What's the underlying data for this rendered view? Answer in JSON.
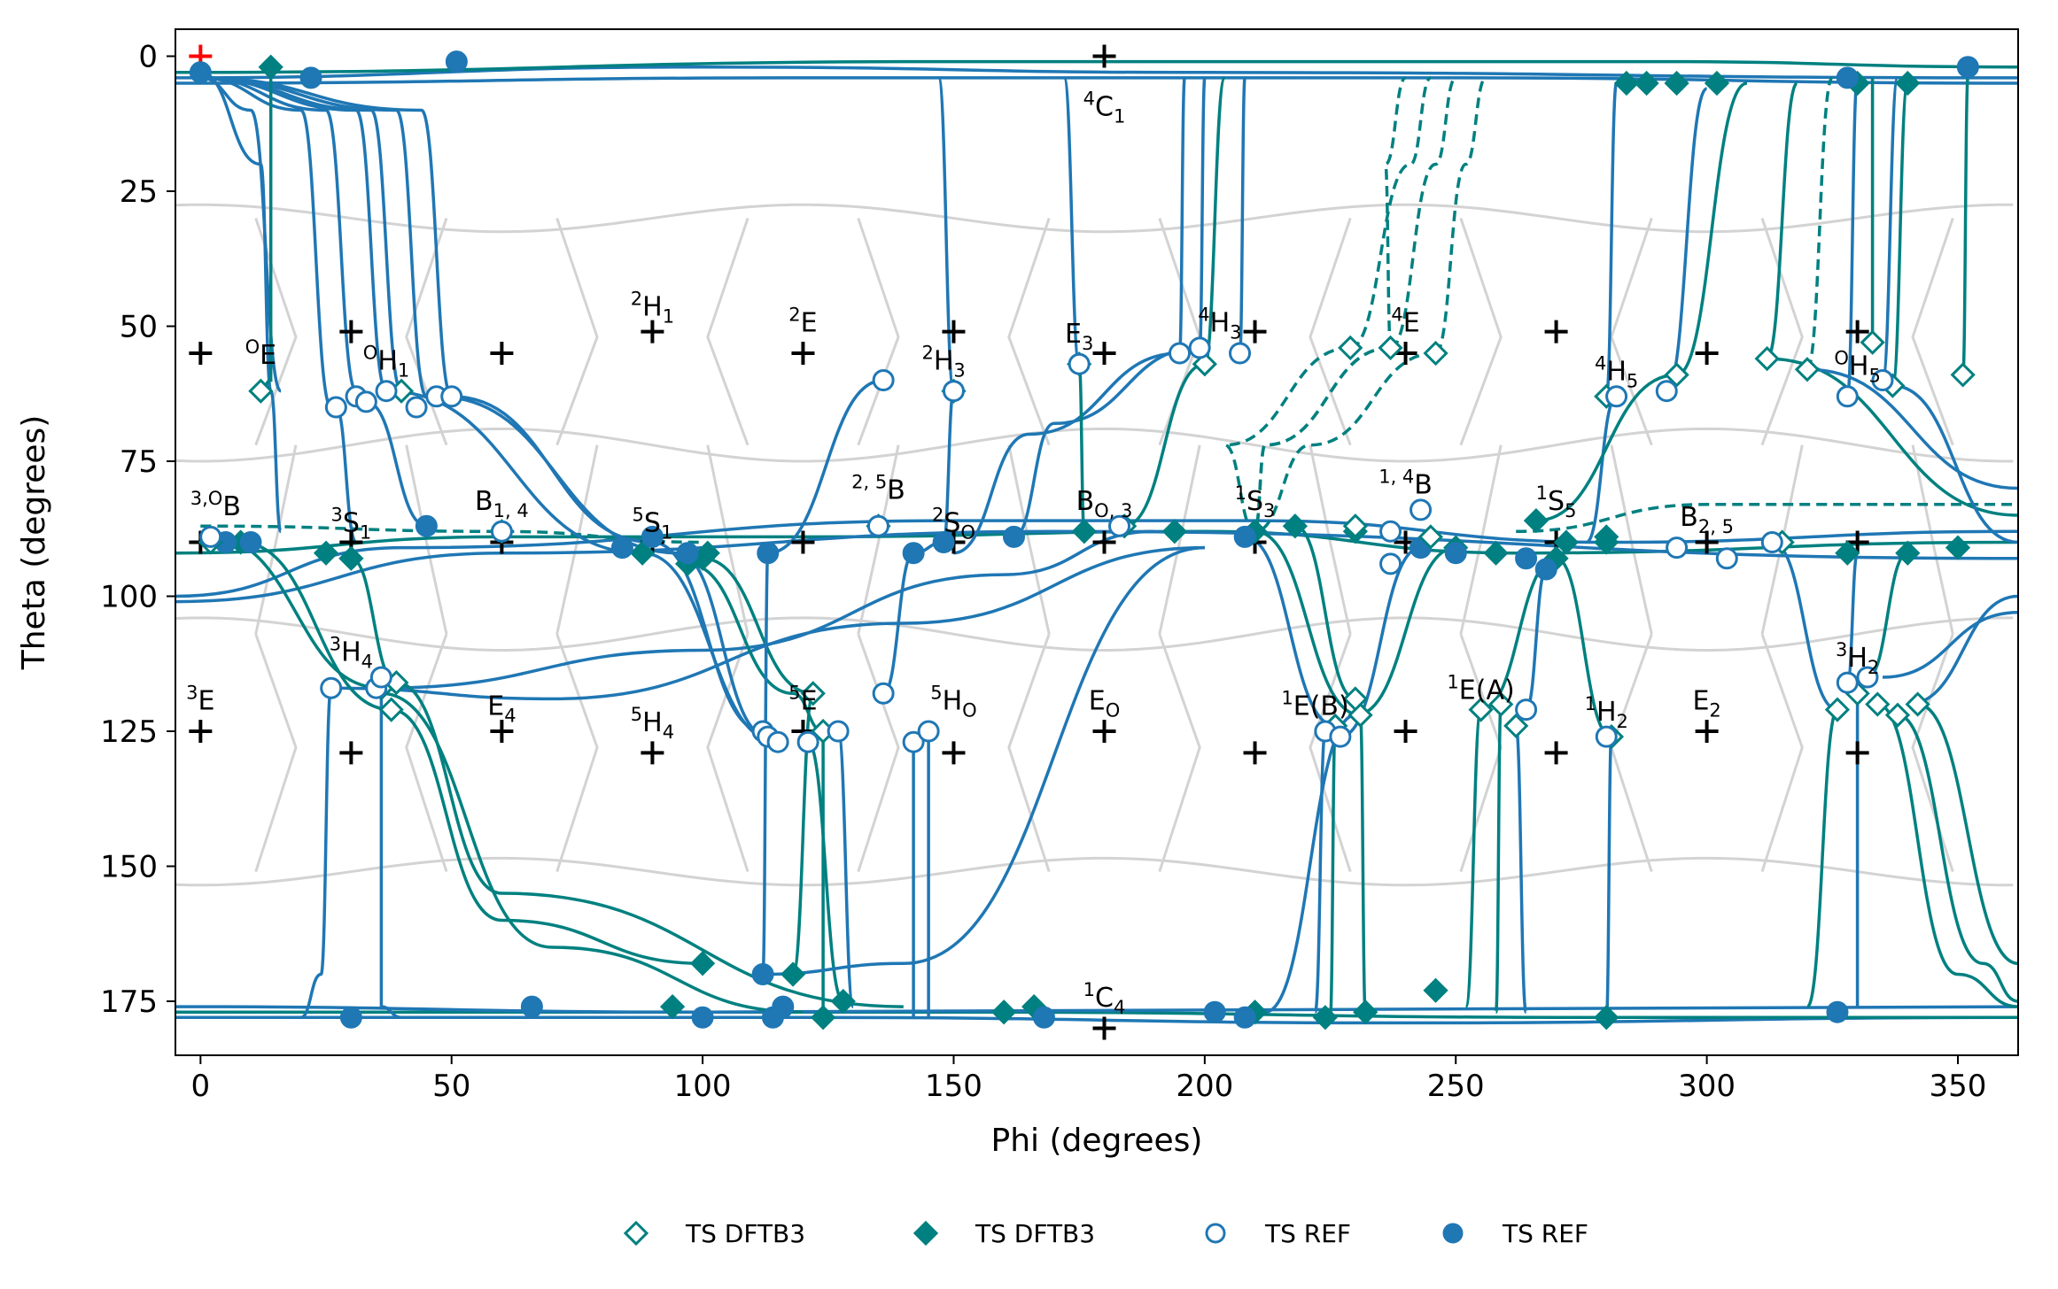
{
  "chart_data": {
    "type": "scatter",
    "xlabel": "Phi (degrees)",
    "ylabel": "Theta (degrees)",
    "xlim": [
      -5,
      362
    ],
    "ylim": [
      185,
      -5
    ],
    "y_inverted": true,
    "xticks": [
      0,
      50,
      100,
      150,
      200,
      250,
      300,
      350
    ],
    "yticks": [
      0,
      25,
      50,
      75,
      100,
      125,
      150,
      175
    ],
    "grid": false,
    "legend_placement": "bottom-center",
    "colors": {
      "dftb3": "#008080",
      "ref": "#1f77b4",
      "voronoi": "#d3d3d3",
      "plus": "#000000",
      "origin_plus": "#ff0000",
      "ts_cross": "#008000"
    },
    "legend": [
      {
        "label": "TS DFTB3",
        "marker": "diamond-open",
        "color": "#008080"
      },
      {
        "label": "TS DFTB3",
        "marker": "diamond-filled",
        "color": "#008080"
      },
      {
        "label": "TS REF",
        "marker": "circle-open",
        "color": "#1f77b4"
      },
      {
        "label": "TS REF",
        "marker": "circle-filled",
        "color": "#1f77b4"
      }
    ],
    "region_labels": [
      {
        "text": "4C1",
        "pre": "4",
        "main": "C",
        "sub": "1",
        "x": 180,
        "y": 11
      },
      {
        "text": "1C4",
        "pre": "1",
        "main": "C",
        "sub": "4",
        "x": 180,
        "y": 176
      },
      {
        "text": "OE",
        "pre": "O",
        "main": "E",
        "sub": "",
        "x": 12,
        "y": 57
      },
      {
        "text": "OH1",
        "pre": "O",
        "main": "H",
        "sub": "1",
        "x": 37,
        "y": 58
      },
      {
        "text": "2H1",
        "pre": "2",
        "main": "H",
        "sub": "1",
        "x": 90,
        "y": 48
      },
      {
        "text": "2E",
        "pre": "2",
        "main": "E",
        "sub": "",
        "x": 120,
        "y": 51
      },
      {
        "text": "2H3",
        "pre": "2",
        "main": "H",
        "sub": "3",
        "x": 148,
        "y": 58
      },
      {
        "text": "E3",
        "pre": "",
        "main": "E",
        "sub": "3",
        "x": 175,
        "y": 53
      },
      {
        "text": "4H3",
        "pre": "4",
        "main": "H",
        "sub": "3",
        "x": 203,
        "y": 51
      },
      {
        "text": "4E",
        "pre": "4",
        "main": "E",
        "sub": "",
        "x": 240,
        "y": 51
      },
      {
        "text": "4H5",
        "pre": "4",
        "main": "H",
        "sub": "5",
        "x": 282,
        "y": 60
      },
      {
        "text": "OH5",
        "pre": "O",
        "main": "H",
        "sub": "5",
        "x": 330,
        "y": 59
      },
      {
        "text": "3,OB",
        "pre": "3,O",
        "main": "B",
        "sub": "",
        "x": 3,
        "y": 85
      },
      {
        "text": "3S1",
        "pre": "3",
        "main": "S",
        "sub": "1",
        "x": 30,
        "y": 88
      },
      {
        "text": "B1,4",
        "pre": "",
        "main": "B",
        "sub": "1, 4",
        "x": 60,
        "y": 84
      },
      {
        "text": "5S1",
        "pre": "5",
        "main": "S",
        "sub": "1",
        "x": 90,
        "y": 88
      },
      {
        "text": "2,5B",
        "pre": "2, 5",
        "main": "B",
        "sub": "",
        "x": 135,
        "y": 82
      },
      {
        "text": "2SO",
        "pre": "2",
        "main": "S",
        "sub": "O",
        "x": 150,
        "y": 88
      },
      {
        "text": "BO,3",
        "pre": "",
        "main": "B",
        "sub": "O, 3",
        "x": 180,
        "y": 84
      },
      {
        "text": "1S3",
        "pre": "1",
        "main": "S",
        "sub": "3",
        "x": 210,
        "y": 84
      },
      {
        "text": "1,4B",
        "pre": "1, 4",
        "main": "B",
        "sub": "",
        "x": 240,
        "y": 81
      },
      {
        "text": "1S5",
        "pre": "1",
        "main": "S",
        "sub": "5",
        "x": 270,
        "y": 84
      },
      {
        "text": "B2,5",
        "pre": "",
        "main": "B",
        "sub": "2, 5",
        "x": 300,
        "y": 87
      },
      {
        "text": "3H4",
        "pre": "3",
        "main": "H",
        "sub": "4",
        "x": 30,
        "y": 112
      },
      {
        "text": "3E",
        "pre": "3",
        "main": "E",
        "sub": "",
        "x": 0,
        "y": 121
      },
      {
        "text": "E4",
        "pre": "",
        "main": "E",
        "sub": "4",
        "x": 60,
        "y": 122
      },
      {
        "text": "5H4",
        "pre": "5",
        "main": "H",
        "sub": "4",
        "x": 90,
        "y": 125
      },
      {
        "text": "5E",
        "pre": "5",
        "main": "E",
        "sub": "",
        "x": 120,
        "y": 121
      },
      {
        "text": "5HO",
        "pre": "5",
        "main": "H",
        "sub": "O",
        "x": 150,
        "y": 121
      },
      {
        "text": "EO",
        "pre": "",
        "main": "E",
        "sub": "O",
        "x": 180,
        "y": 121
      },
      {
        "text": "1E(B)",
        "pre": "1",
        "main": "E(B)",
        "sub": "",
        "x": 222,
        "y": 122
      },
      {
        "text": "1E(A)",
        "pre": "1",
        "main": "E(A)",
        "sub": "",
        "x": 255,
        "y": 119
      },
      {
        "text": "1H2",
        "pre": "1",
        "main": "H",
        "sub": "2",
        "x": 280,
        "y": 123
      },
      {
        "text": "E2",
        "pre": "",
        "main": "E",
        "sub": "2",
        "x": 300,
        "y": 121
      },
      {
        "text": "3H2",
        "pre": "3",
        "main": "H",
        "sub": "2",
        "x": 330,
        "y": 113
      }
    ],
    "reference_points": [
      {
        "x": 0,
        "y": 0,
        "origin": true
      },
      {
        "x": 180,
        "y": 0
      },
      {
        "x": 180,
        "y": 180
      },
      {
        "x": 0,
        "y": 55
      },
      {
        "x": 30,
        "y": 51
      },
      {
        "x": 60,
        "y": 55
      },
      {
        "x": 90,
        "y": 51
      },
      {
        "x": 120,
        "y": 55
      },
      {
        "x": 150,
        "y": 51
      },
      {
        "x": 180,
        "y": 55
      },
      {
        "x": 210,
        "y": 51
      },
      {
        "x": 240,
        "y": 55
      },
      {
        "x": 270,
        "y": 51
      },
      {
        "x": 300,
        "y": 55
      },
      {
        "x": 330,
        "y": 51
      },
      {
        "x": 0,
        "y": 90
      },
      {
        "x": 30,
        "y": 90
      },
      {
        "x": 60,
        "y": 90
      },
      {
        "x": 90,
        "y": 90
      },
      {
        "x": 120,
        "y": 90
      },
      {
        "x": 150,
        "y": 90
      },
      {
        "x": 180,
        "y": 90
      },
      {
        "x": 210,
        "y": 90
      },
      {
        "x": 240,
        "y": 90
      },
      {
        "x": 270,
        "y": 90
      },
      {
        "x": 300,
        "y": 90
      },
      {
        "x": 330,
        "y": 90
      },
      {
        "x": 0,
        "y": 125
      },
      {
        "x": 30,
        "y": 129
      },
      {
        "x": 60,
        "y": 125
      },
      {
        "x": 90,
        "y": 129
      },
      {
        "x": 120,
        "y": 125
      },
      {
        "x": 150,
        "y": 129
      },
      {
        "x": 180,
        "y": 125
      },
      {
        "x": 210,
        "y": 129
      },
      {
        "x": 240,
        "y": 125
      },
      {
        "x": 270,
        "y": 129
      },
      {
        "x": 300,
        "y": 125
      },
      {
        "x": 330,
        "y": 129
      }
    ],
    "ts_dftb3_open": [
      [
        12,
        62
      ],
      [
        40,
        62
      ],
      [
        150,
        62
      ],
      [
        175,
        57
      ],
      [
        200,
        57
      ],
      [
        229,
        54
      ],
      [
        237,
        54
      ],
      [
        246,
        55
      ],
      [
        280,
        63
      ],
      [
        294,
        59
      ],
      [
        312,
        56
      ],
      [
        320,
        58
      ],
      [
        333,
        53
      ],
      [
        337,
        61
      ],
      [
        351,
        59
      ],
      [
        2,
        90
      ],
      [
        60,
        88
      ],
      [
        135,
        87
      ],
      [
        184,
        87
      ],
      [
        230,
        87
      ],
      [
        245,
        89
      ],
      [
        315,
        90
      ],
      [
        36,
        117
      ],
      [
        39,
        116
      ],
      [
        38,
        121
      ],
      [
        122,
        118
      ],
      [
        124,
        125
      ],
      [
        226,
        124
      ],
      [
        231,
        122
      ],
      [
        230,
        119
      ],
      [
        255,
        121
      ],
      [
        259,
        120
      ],
      [
        262,
        124
      ],
      [
        326,
        121
      ],
      [
        330,
        118
      ],
      [
        334,
        120
      ],
      [
        338,
        122
      ],
      [
        342,
        120
      ],
      [
        281,
        126
      ]
    ],
    "ts_dftb3_filled": [
      [
        14,
        2
      ],
      [
        284,
        5
      ],
      [
        288,
        5
      ],
      [
        294,
        5
      ],
      [
        302,
        5
      ],
      [
        330,
        5
      ],
      [
        340,
        5
      ],
      [
        8,
        90
      ],
      [
        25,
        92
      ],
      [
        30,
        93
      ],
      [
        88,
        92
      ],
      [
        97,
        94
      ],
      [
        100,
        93
      ],
      [
        101,
        92
      ],
      [
        176,
        88
      ],
      [
        194,
        88
      ],
      [
        210,
        88
      ],
      [
        218,
        87
      ],
      [
        230,
        88
      ],
      [
        250,
        91
      ],
      [
        258,
        92
      ],
      [
        266,
        86
      ],
      [
        270,
        93
      ],
      [
        272,
        90
      ],
      [
        280,
        90
      ],
      [
        280,
        89
      ],
      [
        328,
        92
      ],
      [
        340,
        92
      ],
      [
        350,
        91
      ],
      [
        100,
        168
      ],
      [
        118,
        170
      ],
      [
        128,
        175
      ],
      [
        124,
        178
      ],
      [
        94,
        176
      ],
      [
        160,
        177
      ],
      [
        166,
        176
      ],
      [
        210,
        177
      ],
      [
        224,
        178
      ],
      [
        232,
        177
      ],
      [
        246,
        173
      ],
      [
        280,
        178
      ]
    ],
    "ts_ref_open": [
      [
        2,
        89
      ],
      [
        27,
        65
      ],
      [
        31,
        63
      ],
      [
        33,
        64
      ],
      [
        37,
        62
      ],
      [
        43,
        65
      ],
      [
        47,
        63
      ],
      [
        50,
        63
      ],
      [
        136,
        60
      ],
      [
        150,
        62
      ],
      [
        175,
        57
      ],
      [
        195,
        55
      ],
      [
        199,
        54
      ],
      [
        207,
        55
      ],
      [
        282,
        63
      ],
      [
        292,
        62
      ],
      [
        313,
        90
      ],
      [
        328,
        63
      ],
      [
        335,
        60
      ],
      [
        60,
        88
      ],
      [
        135,
        87
      ],
      [
        183,
        87
      ],
      [
        237,
        88
      ],
      [
        243,
        84
      ],
      [
        294,
        91
      ],
      [
        304,
        93
      ],
      [
        237,
        94
      ],
      [
        26,
        117
      ],
      [
        35,
        117
      ],
      [
        36,
        115
      ],
      [
        112,
        125
      ],
      [
        113,
        126
      ],
      [
        115,
        127
      ],
      [
        121,
        127
      ],
      [
        127,
        125
      ],
      [
        136,
        118
      ],
      [
        142,
        127
      ],
      [
        145,
        125
      ],
      [
        224,
        125
      ],
      [
        227,
        126
      ],
      [
        264,
        121
      ],
      [
        328,
        116
      ],
      [
        332,
        115
      ],
      [
        280,
        126
      ]
    ],
    "ts_ref_filled": [
      [
        0,
        3
      ],
      [
        22,
        4
      ],
      [
        51,
        1
      ],
      [
        352,
        2
      ],
      [
        328,
        4
      ],
      [
        5,
        90
      ],
      [
        10,
        90
      ],
      [
        45,
        87
      ],
      [
        84,
        91
      ],
      [
        90,
        89
      ],
      [
        97,
        92
      ],
      [
        113,
        92
      ],
      [
        142,
        92
      ],
      [
        148,
        90
      ],
      [
        162,
        89
      ],
      [
        208,
        89
      ],
      [
        243,
        91
      ],
      [
        250,
        92
      ],
      [
        264,
        93
      ],
      [
        268,
        95
      ],
      [
        112,
        170
      ],
      [
        116,
        176
      ],
      [
        30,
        178
      ],
      [
        66,
        176
      ],
      [
        100,
        178
      ],
      [
        114,
        178
      ],
      [
        168,
        178
      ],
      [
        202,
        177
      ],
      [
        208,
        178
      ],
      [
        326,
        177
      ]
    ]
  }
}
